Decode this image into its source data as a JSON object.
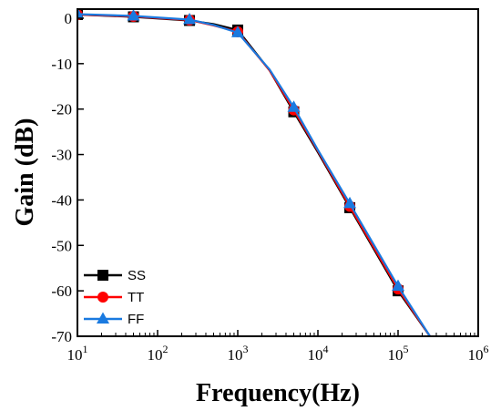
{
  "chart_data": {
    "type": "line",
    "xlabel": "Frequency(Hz)",
    "ylabel": "Gain (dB)",
    "xscale": "log",
    "xlim": [
      10,
      1000000
    ],
    "ylim": [
      -70,
      2
    ],
    "x_ticks": [
      {
        "value": 10,
        "base": "10",
        "exp": "1"
      },
      {
        "value": 100,
        "base": "10",
        "exp": "2"
      },
      {
        "value": 1000,
        "base": "10",
        "exp": "3"
      },
      {
        "value": 10000,
        "base": "10",
        "exp": "4"
      },
      {
        "value": 100000,
        "base": "10",
        "exp": "5"
      },
      {
        "value": 1000000,
        "base": "10",
        "exp": "6"
      }
    ],
    "y_ticks": [
      0,
      -10,
      -20,
      -30,
      -40,
      -50,
      -60,
      -70
    ],
    "y_tick_labels": [
      "0",
      "-10",
      "-20",
      "-30",
      "-40",
      "-50",
      "-60",
      "-70"
    ],
    "grid": false,
    "legend_position": "bottom-left",
    "series": [
      {
        "name": "SS",
        "color": "#000000",
        "marker": "square",
        "x": [
          10,
          50,
          250,
          500,
          1000,
          2500,
          5000,
          10000,
          25000,
          100000,
          250000
        ],
        "y": [
          0.8,
          0.3,
          -0.5,
          -1.3,
          -2.6,
          -11.5,
          -20.6,
          -29.5,
          -41.7,
          -60.0,
          -70.0
        ],
        "marker_x": [
          10,
          50,
          250,
          1000,
          5000,
          25000,
          100000
        ],
        "marker_y": [
          0.8,
          0.3,
          -0.5,
          -2.6,
          -20.6,
          -41.7,
          -60.0
        ]
      },
      {
        "name": "TT",
        "color": "#ff0000",
        "marker": "circle",
        "x": [
          10,
          50,
          250,
          500,
          1000,
          2500,
          5000,
          10000,
          25000,
          100000,
          250000
        ],
        "y": [
          0.8,
          0.4,
          -0.4,
          -1.6,
          -3.0,
          -11.5,
          -20.2,
          -29.2,
          -41.4,
          -59.6,
          -70.0
        ],
        "marker_x": [
          10,
          50,
          250,
          1000,
          5000,
          25000,
          100000
        ],
        "marker_y": [
          0.8,
          0.4,
          -0.4,
          -3.0,
          -20.2,
          -41.4,
          -59.6
        ]
      },
      {
        "name": "FF",
        "color": "#1a7ae0",
        "marker": "triangle",
        "x": [
          10,
          50,
          250,
          500,
          1000,
          2500,
          5000,
          10000,
          25000,
          100000,
          250000
        ],
        "y": [
          0.9,
          0.5,
          -0.3,
          -1.5,
          -3.2,
          -11.3,
          -19.6,
          -29.0,
          -40.8,
          -59.0,
          -70.0
        ],
        "marker_x": [
          10,
          50,
          250,
          1000,
          5000,
          25000,
          100000
        ],
        "marker_y": [
          0.9,
          0.5,
          -0.3,
          -3.2,
          -19.6,
          -40.8,
          -59.0
        ]
      }
    ]
  }
}
